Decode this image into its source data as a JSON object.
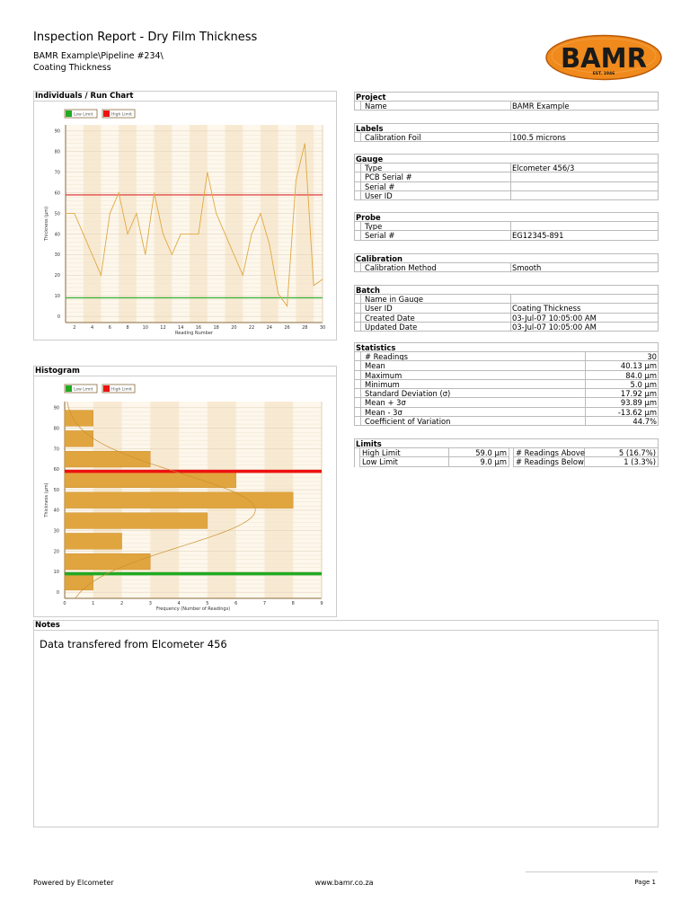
{
  "header": {
    "title": "Inspection Report - Dry Film Thickness",
    "path": "BAMR Example\\Pipeline #234\\",
    "batch": "Coating Thickness",
    "logo": {
      "text": "BAMR",
      "tagline": "EST. 1946",
      "color": "#f08a1c"
    }
  },
  "run_chart_title": "Individuals / Run Chart",
  "histogram_title": "Histogram",
  "chart_data": [
    {
      "type": "line",
      "xlabel": "Reading Number",
      "ylabel": "Thickness (µm)",
      "xlim": [
        1,
        30
      ],
      "ylim": [
        -3,
        93
      ],
      "xticks": [
        2,
        4,
        6,
        8,
        10,
        12,
        14,
        16,
        18,
        20,
        22,
        24,
        26,
        28,
        30
      ],
      "yticks": [
        0,
        10,
        20,
        30,
        40,
        50,
        60,
        70,
        80,
        90
      ],
      "grid": true,
      "legend": {
        "placement": "top-left",
        "entries": [
          {
            "name": "Low Limit",
            "color": "#22aa22"
          },
          {
            "name": "High Limit",
            "color": "#ee1111"
          }
        ]
      },
      "x": [
        1,
        2,
        3,
        4,
        5,
        6,
        7,
        8,
        9,
        10,
        11,
        12,
        13,
        14,
        15,
        16,
        17,
        18,
        19,
        20,
        21,
        22,
        23,
        24,
        25,
        26,
        27,
        28,
        29,
        30
      ],
      "values": [
        50,
        50,
        40,
        30,
        20,
        50,
        60,
        40,
        50,
        30,
        60,
        40,
        30,
        40,
        40,
        40,
        70,
        50,
        40,
        30,
        20,
        40,
        50,
        35,
        11,
        5,
        66,
        84,
        15,
        18
      ],
      "line_color": "#e0a840",
      "high_limit": 59.0,
      "low_limit": 9.0
    },
    {
      "type": "bar",
      "orientation": "horizontal",
      "xlabel": "Frequency (Number of Readings)",
      "ylabel": "Thickness (µm)",
      "xlim": [
        0,
        9
      ],
      "ylim": [
        -3,
        93
      ],
      "xticks": [
        0,
        1,
        2,
        3,
        4,
        5,
        6,
        7,
        8,
        9
      ],
      "yticks": [
        0,
        10,
        20,
        30,
        40,
        50,
        60,
        70,
        80,
        90
      ],
      "grid": true,
      "legend": {
        "placement": "top-left",
        "entries": [
          {
            "name": "Low Limit",
            "color": "#22aa22"
          },
          {
            "name": "High Limit",
            "color": "#ee1111"
          }
        ]
      },
      "bins": [
        [
          0,
          10
        ],
        [
          10,
          20
        ],
        [
          20,
          30
        ],
        [
          30,
          40
        ],
        [
          40,
          50
        ],
        [
          50,
          60
        ],
        [
          60,
          70
        ],
        [
          70,
          80
        ],
        [
          80,
          90
        ]
      ],
      "values": [
        1,
        3,
        2,
        5,
        8,
        6,
        3,
        1,
        1
      ],
      "bar_color": "#e0a53e",
      "normal_curve": {
        "mean": 40.13,
        "sd": 17.92
      },
      "high_limit": 59.0,
      "low_limit": 9.0
    }
  ],
  "sections": [
    {
      "title": "Project",
      "rows": [
        [
          "Name",
          "BAMR Example"
        ]
      ]
    },
    {
      "title": "Labels",
      "rows": [
        [
          "Calibration Foil",
          "100.5 microns"
        ]
      ]
    },
    {
      "title": "Gauge",
      "rows": [
        [
          "Type",
          "Elcometer 456/3"
        ],
        [
          "PCB Serial #",
          ""
        ],
        [
          "Serial #",
          ""
        ],
        [
          "User ID",
          ""
        ]
      ]
    },
    {
      "title": "Probe",
      "rows": [
        [
          "Type",
          ""
        ],
        [
          "Serial #",
          "EG12345-891"
        ]
      ]
    },
    {
      "title": "Calibration",
      "rows": [
        [
          "Calibration Method",
          "Smooth"
        ]
      ]
    },
    {
      "title": "Batch",
      "rows": [
        [
          "Name in Gauge",
          ""
        ],
        [
          "User ID",
          "Coating Thickness"
        ],
        [
          "Created Date",
          "03-Jul-07 10:05:00 AM"
        ],
        [
          "Updated Date",
          "03-Jul-07 10:05:00 AM"
        ]
      ]
    }
  ],
  "statistics": {
    "title": "Statistics",
    "rows": [
      [
        "# Readings",
        "30"
      ],
      [
        "Mean",
        "40.13 µm"
      ],
      [
        "Maximum",
        "84.0 µm"
      ],
      [
        "Minimum",
        "5.0 µm"
      ],
      [
        "Standard Deviation (σ)",
        "17.92 µm"
      ],
      [
        "Mean + 3σ",
        "93.89 µm"
      ],
      [
        "Mean - 3σ",
        "-13.62 µm"
      ],
      [
        "Coefficient of Variation",
        "44.7%"
      ]
    ]
  },
  "limits": {
    "title": "Limits",
    "rows": [
      [
        "High Limit",
        "59.0 µm",
        "# Readings Above",
        "5 (16.7%)"
      ],
      [
        "Low Limit",
        "9.0 µm",
        "# Readings Below",
        "1 (3.3%)"
      ]
    ]
  },
  "notes": {
    "title": "Notes",
    "text": "Data transfered from Elcometer 456"
  },
  "footer": {
    "left": "Powered by Elcometer",
    "center": "www.bamr.co.za",
    "right": "Page 1"
  }
}
